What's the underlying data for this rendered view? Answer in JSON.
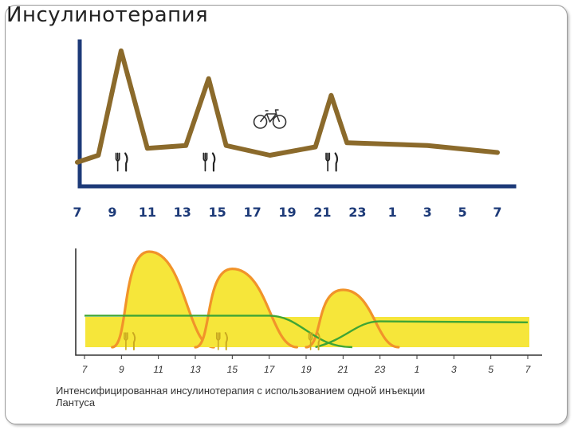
{
  "slide": {
    "title": "Инсулинотерапия"
  },
  "chart_data": [
    {
      "type": "line",
      "title": "",
      "xlabel": "",
      "ylabel": "",
      "x_ticks": [
        "7",
        "9",
        "11",
        "13",
        "15",
        "17",
        "19",
        "21",
        "23",
        "1",
        "3",
        "5",
        "7"
      ],
      "series": [
        {
          "values": [
            {
              "x": 7,
              "y": 0.15
            },
            {
              "x": 8.2,
              "y": 0.2
            },
            {
              "x": 9.5,
              "y": 0.95
            },
            {
              "x": 11,
              "y": 0.25
            },
            {
              "x": 13.2,
              "y": 0.27
            },
            {
              "x": 14.5,
              "y": 0.75
            },
            {
              "x": 15.5,
              "y": 0.27
            },
            {
              "x": 18,
              "y": 0.2
            },
            {
              "x": 20.6,
              "y": 0.26
            },
            {
              "x": 21.5,
              "y": 0.63
            },
            {
              "x": 22.4,
              "y": 0.29
            },
            {
              "x": 27,
              "y": 0.27
            },
            {
              "x": 31,
              "y": 0.22
            }
          ]
        }
      ],
      "annotations": [
        {
          "label": "fork-knife-icon",
          "x": 9.5
        },
        {
          "label": "fork-knife-icon",
          "x": 14.5
        },
        {
          "label": "fork-knife-icon",
          "x": 21.5
        },
        {
          "label": "bicycle-icon",
          "x": 18
        }
      ],
      "colors": {
        "line": "#8b6a2b",
        "axis": "#1d3a78",
        "ticks": "#1d3a78"
      }
    },
    {
      "type": "area",
      "title": "",
      "caption_line1": "Интенсифицированная инсулинотерапия с использованием одной инъекции",
      "caption_line2": "Лантуса",
      "x_ticks": [
        "7",
        "9",
        "11",
        "13",
        "15",
        "17",
        "19",
        "21",
        "23",
        "1",
        "3",
        "5",
        "7"
      ],
      "series": [
        {
          "values": [
            {
              "x": 7,
              "y": 0.33
            },
            {
              "x": 17,
              "y": 0.33
            },
            {
              "x": 21.5,
              "y": 0.0
            }
          ]
        },
        {
          "values": [
            {
              "x": 19.5,
              "y": 0.0
            },
            {
              "x": 23,
              "y": 0.27
            },
            {
              "x": 31,
              "y": 0.26
            }
          ]
        },
        {
          "values": [
            {
              "x": 8.5,
              "y": 0.0
            },
            {
              "x": 10.5,
              "y": 1.0
            },
            {
              "x": 14,
              "y": 0.0
            }
          ]
        },
        {
          "values": [
            {
              "x": 13,
              "y": 0.0
            },
            {
              "x": 15,
              "y": 0.82
            },
            {
              "x": 18.5,
              "y": 0.0
            }
          ]
        },
        {
          "values": [
            {
              "x": 19,
              "y": 0.0
            },
            {
              "x": 21,
              "y": 0.6
            },
            {
              "x": 24,
              "y": 0.0
            }
          ]
        }
      ],
      "annotations": [
        {
          "label": "fork-knife-icon",
          "x": 9.5
        },
        {
          "label": "fork-knife-icon",
          "x": 14.5
        },
        {
          "label": "fork-knife-icon",
          "x": 19.5
        }
      ],
      "colors": {
        "fill": "#f6e63a",
        "peak_stroke": "#f1932a",
        "basal": "#3fa535",
        "axis": "#333333"
      }
    }
  ]
}
